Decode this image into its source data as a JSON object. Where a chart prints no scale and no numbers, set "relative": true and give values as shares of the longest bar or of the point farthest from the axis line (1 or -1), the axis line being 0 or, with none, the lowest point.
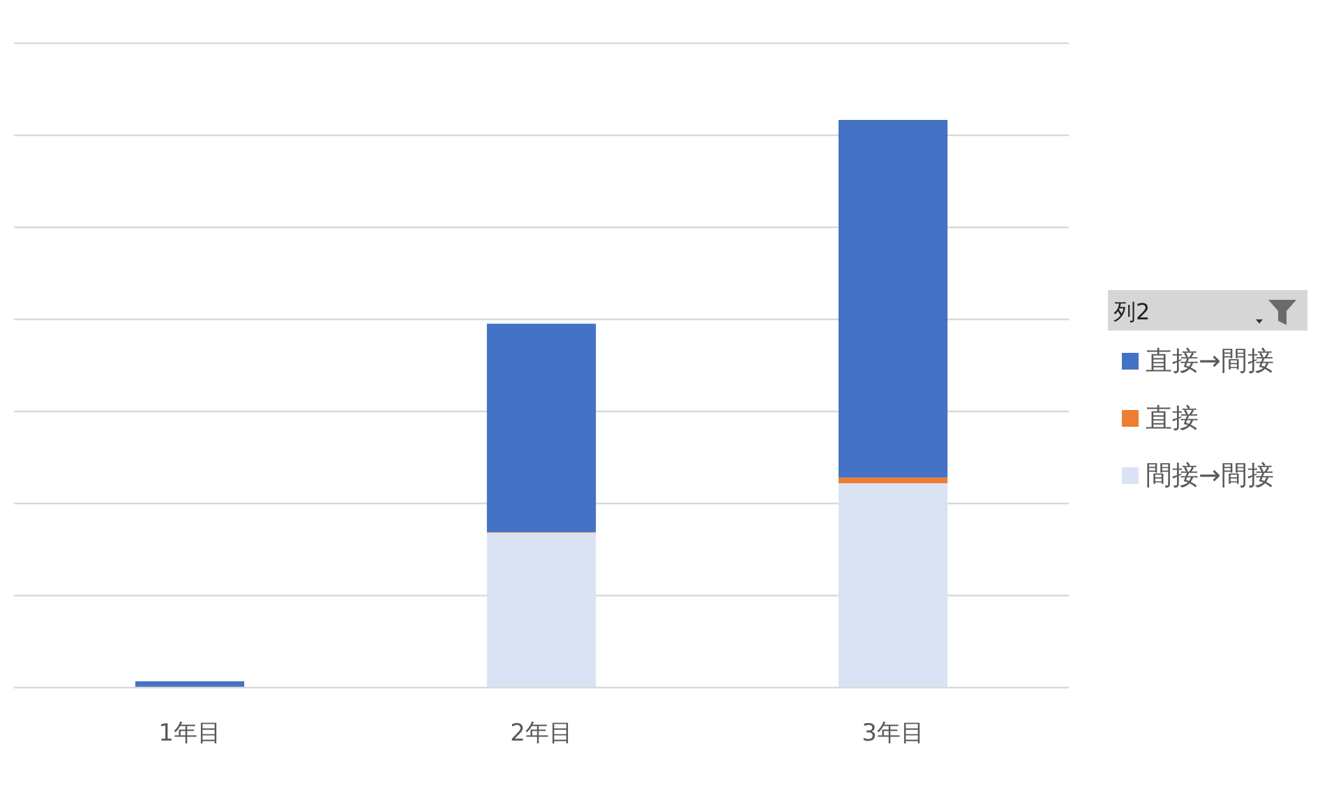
{
  "chart_data": {
    "type": "bar",
    "stacked": true,
    "relative": true,
    "grid": true,
    "legend": "right",
    "legend_title": "列2",
    "categories": [
      "1年目",
      "2年目",
      "3年目"
    ],
    "series": [
      {
        "name": "間接→間接",
        "color": "#dae3f3",
        "values": [
          0,
          0.273,
          0.36
        ]
      },
      {
        "name": "直接",
        "color": "#ed7d31",
        "values": [
          0,
          0.001,
          0.01
        ]
      },
      {
        "name": "直接→間接",
        "color": "#4472c4",
        "values": [
          0.011,
          0.367,
          0.63
        ]
      }
    ]
  }
}
